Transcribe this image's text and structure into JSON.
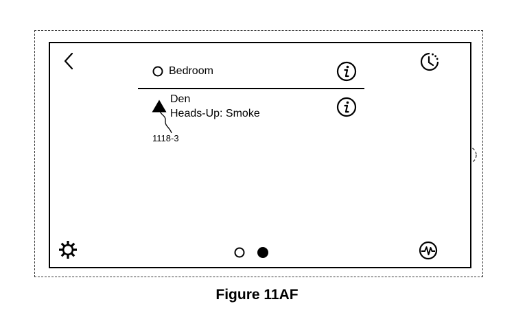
{
  "figure": {
    "caption": "Figure 11AF"
  },
  "list": {
    "items": [
      {
        "name": "Bedroom",
        "status": "",
        "icon": "circle-outline-icon",
        "info_icon": "info-icon"
      },
      {
        "name": "Den",
        "status": "Heads-Up: Smoke",
        "icon": "warning-triangle-icon",
        "info_icon": "info-icon"
      }
    ]
  },
  "annotation": {
    "reference_numeral": "1118-3"
  },
  "pagination": {
    "pages": 2,
    "active_page": 2
  },
  "icons": {
    "top_left": "back-chevron-icon",
    "top_right": "history-clock-icon",
    "bottom_left": "settings-gear-icon",
    "bottom_right": "activity-pulse-icon",
    "device_side": "home-button-icon"
  }
}
